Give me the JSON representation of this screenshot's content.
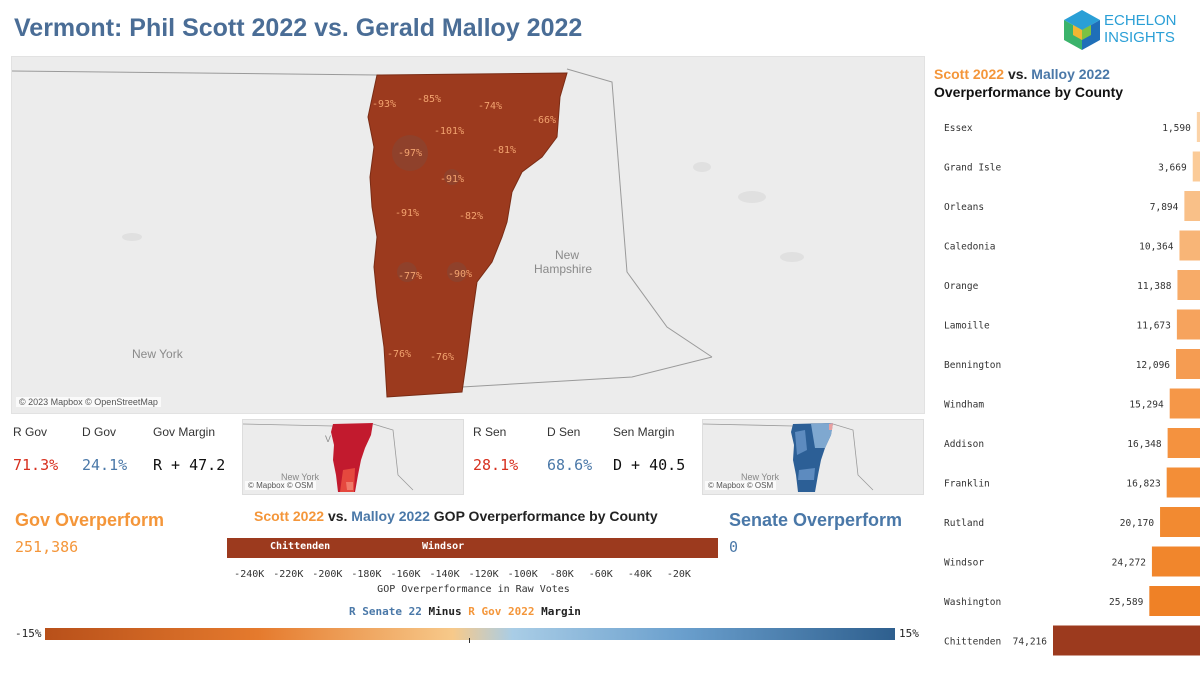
{
  "title": "Vermont: Phil Scott 2022 vs. Gerald Malloy 2022",
  "logo": {
    "line1": "ECHELON",
    "line2": "INSIGHTS"
  },
  "main_map": {
    "credit": "© 2023 Mapbox © OpenStreetMap",
    "labels": {
      "new_york": "New York",
      "new_hampshire_1": "New",
      "new_hampshire_2": "Hampshire"
    },
    "county_pcts": [
      "-93%",
      "-85%",
      "-74%",
      "-66%",
      "-101%",
      "-97%",
      "-81%",
      "-91%",
      "-91%",
      "-82%",
      "-77%",
      "-90%",
      "-76%",
      "-76%"
    ],
    "fill_color": "#9c3a1e"
  },
  "gov_kpis": {
    "r_label": "R Gov",
    "d_label": "D Gov",
    "m_label": "Gov Margin",
    "r_value": "71.3%",
    "d_value": "24.1%",
    "m_value": "R + 47.2"
  },
  "sen_kpis": {
    "r_label": "R Sen",
    "d_label": "D Sen",
    "m_label": "Sen Margin",
    "r_value": "28.1%",
    "d_value": "68.6%",
    "m_value": "D + 40.5"
  },
  "mini_maps": {
    "credit": "© Mapbox © OSM",
    "label": "New York",
    "label2": "V"
  },
  "gov_overperform": {
    "label": "Gov Overperform",
    "value": "251,386"
  },
  "senate_overperform": {
    "label": "Senate Overperform",
    "value": "0"
  },
  "county_chart_title": {
    "scott": "Scott 2022",
    "vs": "vs.",
    "malloy": "Malloy 2022",
    "rest": "GOP Overperformance by County"
  },
  "right_title": {
    "scott": "Scott 2022",
    "vs": "vs.",
    "malloy": "Malloy 2022",
    "line2": "Overperformance by County"
  },
  "legend": {
    "r_senate": "R Senate 22",
    "minus": "Minus",
    "r_gov": "R Gov 2022",
    "margin": "Margin",
    "min_label": "-15%",
    "max_label": "15%"
  },
  "colors": {
    "orange": "#f4963a",
    "blue": "#4a78a8",
    "dark_red": "#9c3a1e",
    "title_blue": "#4a6d96"
  },
  "chart_data": [
    {
      "type": "bar",
      "orientation": "horizontal-stacked",
      "title": "Scott 2022 vs. Malloy 2022 GOP Overperformance by County",
      "xlabel": "GOP Overperformance in Raw Votes",
      "xlim": [
        -251386,
        0
      ],
      "xticks": [
        "-240K",
        "-220K",
        "-200K",
        "-180K",
        "-160K",
        "-140K",
        "-120K",
        "-100K",
        "-80K",
        "-60K",
        "-40K",
        "-20K"
      ],
      "xtick_values": [
        -240000,
        -220000,
        -200000,
        -180000,
        -160000,
        -140000,
        -120000,
        -100000,
        -80000,
        -60000,
        -40000,
        -20000
      ],
      "segment_labels": [
        "Chittenden",
        "Windsor"
      ],
      "total": -251386
    },
    {
      "type": "bar",
      "orientation": "horizontal",
      "title": "Scott 2022 vs. Malloy 2022 Overperformance by County",
      "categories": [
        "Essex",
        "Grand Isle",
        "Orleans",
        "Caledonia",
        "Orange",
        "Lamoille",
        "Bennington",
        "Windham",
        "Addison",
        "Franklin",
        "Rutland",
        "Windsor",
        "Washington",
        "Chittenden"
      ],
      "values": [
        1590,
        3669,
        7894,
        10364,
        11388,
        11673,
        12096,
        15294,
        16348,
        16823,
        20170,
        24272,
        25589,
        74216
      ],
      "value_labels": [
        "1,590",
        "3,669",
        "7,894",
        "10,364",
        "11,388",
        "11,673",
        "12,096",
        "15,294",
        "16,348",
        "16,823",
        "20,170",
        "24,272",
        "25,589",
        "74,216"
      ]
    }
  ]
}
